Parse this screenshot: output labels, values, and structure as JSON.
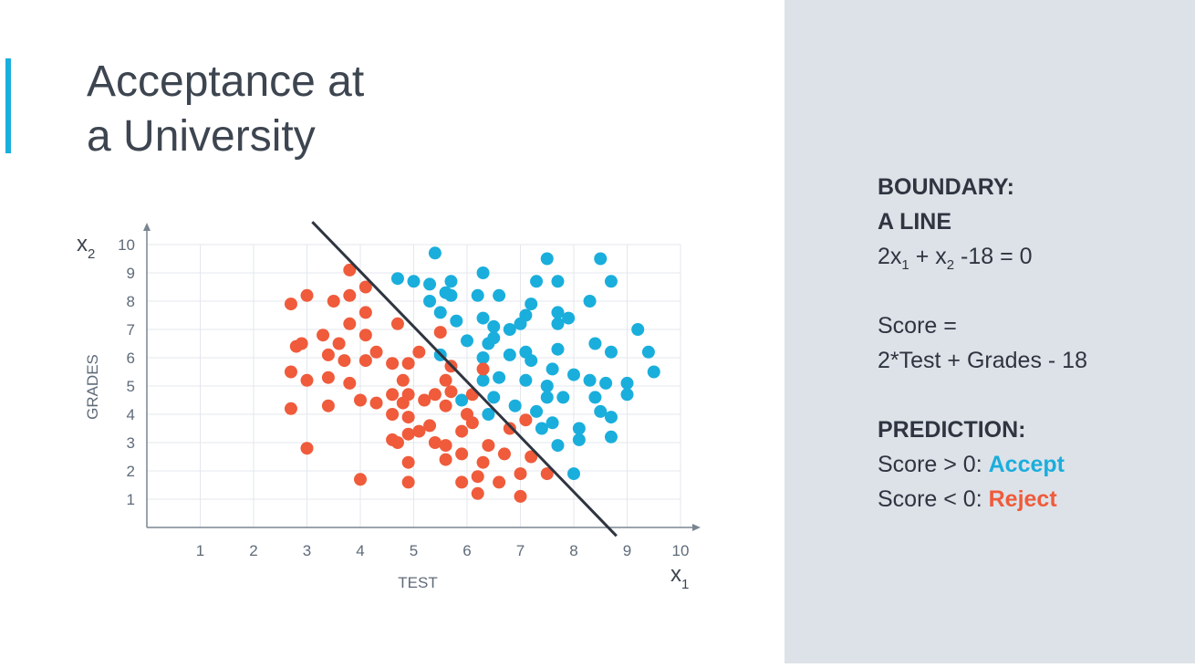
{
  "slide": {
    "title_line1": "Acceptance at",
    "title_line2": "a University",
    "accent_color": "#1aaedc"
  },
  "panel": {
    "boundary_heading": "BOUNDARY:",
    "boundary_sub": "A LINE",
    "equation": {
      "t1": "2x",
      "s1": "1",
      "t2": " + x",
      "s2": "2",
      "t3": " -18 = 0"
    },
    "score_line1": "Score =",
    "score_line2": "2*Test + Grades - 18",
    "prediction_heading": "PREDICTION:",
    "accept_prefix": "Score > 0: ",
    "accept_word": "Accept",
    "reject_prefix": "Score < 0: ",
    "reject_word": "Reject"
  },
  "chart_data": {
    "type": "scatter",
    "xlabel": "TEST",
    "ylabel": "GRADES",
    "x_symbol": {
      "base": "x",
      "sub": "1"
    },
    "y_symbol": {
      "base": "x",
      "sub": "2"
    },
    "xlim": [
      0,
      10
    ],
    "ylim": [
      0,
      10
    ],
    "xticks": [
      1,
      2,
      3,
      4,
      5,
      6,
      7,
      8,
      9,
      10
    ],
    "yticks": [
      1,
      2,
      3,
      4,
      5,
      6,
      7,
      8,
      9,
      10
    ],
    "grid": true,
    "boundary": {
      "equation": "2*x1 + x2 - 18 = 0",
      "from": [
        3.1,
        10.8
      ],
      "to": [
        8.8,
        -0.3
      ],
      "color": "#2f3540"
    },
    "series": [
      {
        "name": "Accept",
        "color": "#1aaedc",
        "points": [
          [
            4.7,
            8.8
          ],
          [
            5.0,
            8.7
          ],
          [
            5.3,
            8.6
          ],
          [
            5.4,
            9.7
          ],
          [
            5.7,
            8.7
          ],
          [
            5.6,
            8.3
          ],
          [
            5.3,
            8.0
          ],
          [
            5.7,
            8.2
          ],
          [
            6.2,
            8.2
          ],
          [
            6.3,
            9.0
          ],
          [
            6.6,
            8.2
          ],
          [
            7.2,
            7.9
          ],
          [
            7.3,
            8.7
          ],
          [
            7.7,
            8.7
          ],
          [
            7.5,
            9.5
          ],
          [
            8.5,
            9.5
          ],
          [
            8.7,
            8.7
          ],
          [
            8.3,
            8.0
          ],
          [
            7.9,
            7.4
          ],
          [
            7.7,
            7.6
          ],
          [
            7.1,
            7.5
          ],
          [
            6.3,
            7.4
          ],
          [
            6.5,
            7.1
          ],
          [
            6.8,
            7.0
          ],
          [
            7.0,
            7.2
          ],
          [
            7.7,
            7.2
          ],
          [
            5.8,
            7.3
          ],
          [
            5.5,
            7.6
          ],
          [
            6.0,
            6.6
          ],
          [
            6.4,
            6.5
          ],
          [
            6.5,
            6.7
          ],
          [
            6.8,
            6.1
          ],
          [
            7.1,
            6.2
          ],
          [
            7.2,
            5.9
          ],
          [
            7.7,
            6.3
          ],
          [
            8.4,
            6.5
          ],
          [
            8.7,
            6.2
          ],
          [
            9.2,
            7.0
          ],
          [
            9.4,
            6.2
          ],
          [
            9.5,
            5.5
          ],
          [
            5.5,
            6.1
          ],
          [
            6.3,
            6.0
          ],
          [
            6.3,
            5.2
          ],
          [
            6.6,
            5.3
          ],
          [
            7.1,
            5.2
          ],
          [
            7.6,
            5.6
          ],
          [
            7.5,
            5.0
          ],
          [
            8.0,
            5.4
          ],
          [
            8.3,
            5.2
          ],
          [
            8.6,
            5.1
          ],
          [
            9.0,
            5.1
          ],
          [
            7.5,
            4.6
          ],
          [
            7.8,
            4.6
          ],
          [
            8.4,
            4.6
          ],
          [
            6.5,
            4.6
          ],
          [
            6.9,
            4.3
          ],
          [
            7.3,
            4.1
          ],
          [
            7.6,
            3.7
          ],
          [
            8.1,
            3.5
          ],
          [
            8.5,
            4.1
          ],
          [
            8.7,
            3.9
          ],
          [
            8.7,
            3.2
          ],
          [
            7.4,
            3.5
          ],
          [
            7.7,
            2.9
          ],
          [
            8.1,
            3.1
          ],
          [
            8.0,
            1.9
          ],
          [
            5.9,
            4.5
          ],
          [
            9.0,
            4.7
          ],
          [
            6.4,
            4.0
          ]
        ]
      },
      {
        "name": "Reject",
        "color": "#ef5b3b",
        "points": [
          [
            3.8,
            9.1
          ],
          [
            4.1,
            8.5
          ],
          [
            2.7,
            7.9
          ],
          [
            3.0,
            8.2
          ],
          [
            3.5,
            8.0
          ],
          [
            3.8,
            8.2
          ],
          [
            4.1,
            7.6
          ],
          [
            3.8,
            7.2
          ],
          [
            4.1,
            6.8
          ],
          [
            4.7,
            7.2
          ],
          [
            3.3,
            6.8
          ],
          [
            3.6,
            6.5
          ],
          [
            2.8,
            6.4
          ],
          [
            2.9,
            6.5
          ],
          [
            3.4,
            6.1
          ],
          [
            3.7,
            5.9
          ],
          [
            4.1,
            5.9
          ],
          [
            4.3,
            6.2
          ],
          [
            4.6,
            5.8
          ],
          [
            4.9,
            5.8
          ],
          [
            5.1,
            6.2
          ],
          [
            5.5,
            6.9
          ],
          [
            2.7,
            5.5
          ],
          [
            3.0,
            5.2
          ],
          [
            3.4,
            5.3
          ],
          [
            3.8,
            5.1
          ],
          [
            4.8,
            5.2
          ],
          [
            4.9,
            4.7
          ],
          [
            5.2,
            4.5
          ],
          [
            5.4,
            4.7
          ],
          [
            5.6,
            5.2
          ],
          [
            5.7,
            4.8
          ],
          [
            5.7,
            5.7
          ],
          [
            6.3,
            5.6
          ],
          [
            6.1,
            4.7
          ],
          [
            3.4,
            4.3
          ],
          [
            4.0,
            4.5
          ],
          [
            4.3,
            4.4
          ],
          [
            4.6,
            4.7
          ],
          [
            4.8,
            4.4
          ],
          [
            4.6,
            4.0
          ],
          [
            4.9,
            3.9
          ],
          [
            5.1,
            3.4
          ],
          [
            5.3,
            3.6
          ],
          [
            5.6,
            4.3
          ],
          [
            6.0,
            4.0
          ],
          [
            6.1,
            3.7
          ],
          [
            2.7,
            4.2
          ],
          [
            3.0,
            2.8
          ],
          [
            4.6,
            3.1
          ],
          [
            4.7,
            3.0
          ],
          [
            4.9,
            3.3
          ],
          [
            5.4,
            3.0
          ],
          [
            5.6,
            2.9
          ],
          [
            5.9,
            3.4
          ],
          [
            6.4,
            2.9
          ],
          [
            6.8,
            3.5
          ],
          [
            7.1,
            3.8
          ],
          [
            5.6,
            2.4
          ],
          [
            5.9,
            2.6
          ],
          [
            6.3,
            2.3
          ],
          [
            6.7,
            2.6
          ],
          [
            7.2,
            2.5
          ],
          [
            4.9,
            2.3
          ],
          [
            4.0,
            1.7
          ],
          [
            4.9,
            1.6
          ],
          [
            5.9,
            1.6
          ],
          [
            6.2,
            1.8
          ],
          [
            6.6,
            1.6
          ],
          [
            7.0,
            1.9
          ],
          [
            7.5,
            1.9
          ],
          [
            6.2,
            1.2
          ],
          [
            7.0,
            1.1
          ]
        ]
      }
    ]
  }
}
